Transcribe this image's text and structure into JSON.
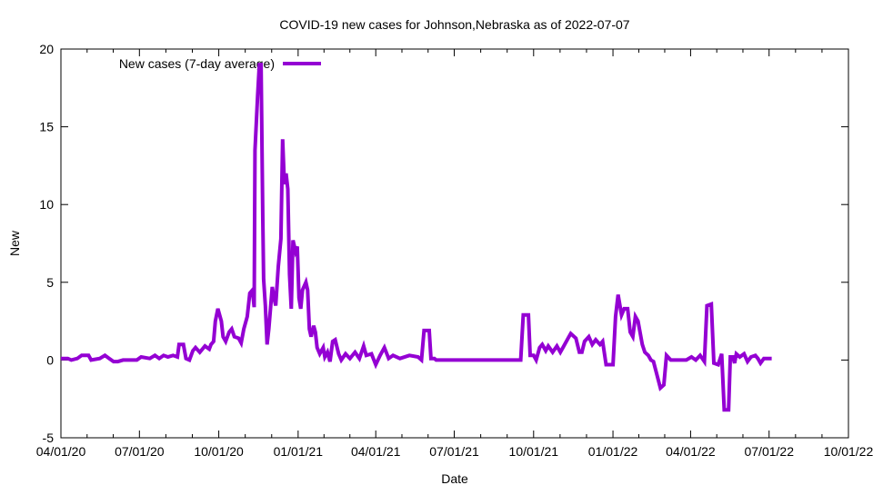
{
  "chart_data": {
    "type": "line",
    "title": "COVID-19 new cases for Johnson,Nebraska as of 2022-07-07",
    "xlabel": "Date",
    "ylabel": "New",
    "x_unit": "days since 04/01/20",
    "xlim": [
      0,
      913
    ],
    "ylim": [
      -5,
      20
    ],
    "y_ticks": [
      -5,
      0,
      5,
      10,
      15,
      20
    ],
    "x_ticks": [
      {
        "day": 0,
        "label": "04/01/20"
      },
      {
        "day": 91,
        "label": "07/01/20"
      },
      {
        "day": 183,
        "label": "10/01/20"
      },
      {
        "day": 275,
        "label": "01/01/21"
      },
      {
        "day": 365,
        "label": "04/01/21"
      },
      {
        "day": 456,
        "label": "07/01/21"
      },
      {
        "day": 548,
        "label": "10/01/21"
      },
      {
        "day": 640,
        "label": "01/01/22"
      },
      {
        "day": 730,
        "label": "04/01/22"
      },
      {
        "day": 821,
        "label": "07/01/22"
      },
      {
        "day": 913,
        "label": "10/01/22"
      }
    ],
    "grid": false,
    "legend_position": "top-left",
    "series": [
      {
        "name": "New cases (7-day average)",
        "color": "#9400d3",
        "points": [
          [
            0,
            0.1
          ],
          [
            8,
            0.1
          ],
          [
            12,
            0
          ],
          [
            19,
            0.1
          ],
          [
            24,
            0.3
          ],
          [
            32,
            0.3
          ],
          [
            35,
            0
          ],
          [
            45,
            0.1
          ],
          [
            51,
            0.3
          ],
          [
            56,
            0.1
          ],
          [
            61,
            -0.1
          ],
          [
            66,
            -0.1
          ],
          [
            72,
            0
          ],
          [
            88,
            0
          ],
          [
            93,
            0.2
          ],
          [
            103,
            0.1
          ],
          [
            109,
            0.3
          ],
          [
            114,
            0.1
          ],
          [
            119,
            0.3
          ],
          [
            124,
            0.2
          ],
          [
            130,
            0.3
          ],
          [
            135,
            0.2
          ],
          [
            137,
            1.0
          ],
          [
            142,
            1.0
          ],
          [
            145,
            0.1
          ],
          [
            149,
            0
          ],
          [
            153,
            0.6
          ],
          [
            156,
            0.8
          ],
          [
            161,
            0.5
          ],
          [
            167,
            0.9
          ],
          [
            172,
            0.7
          ],
          [
            174,
            1.0
          ],
          [
            177,
            1.2
          ],
          [
            179,
            2.5
          ],
          [
            182,
            3.3
          ],
          [
            186,
            2.5
          ],
          [
            188,
            1.5
          ],
          [
            191,
            1.2
          ],
          [
            195,
            1.8
          ],
          [
            198,
            2.0
          ],
          [
            201,
            1.5
          ],
          [
            206,
            1.4
          ],
          [
            209,
            1.1
          ],
          [
            212,
            2.0
          ],
          [
            216,
            2.8
          ],
          [
            219,
            4.3
          ],
          [
            222,
            4.5
          ],
          [
            224,
            3.4
          ],
          [
            225,
            13.5
          ],
          [
            228,
            17
          ],
          [
            230,
            19
          ],
          [
            232,
            19
          ],
          [
            234,
            9
          ],
          [
            235,
            5.2
          ],
          [
            237,
            3.5
          ],
          [
            239,
            1.0
          ],
          [
            241,
            2
          ],
          [
            245,
            4.7
          ],
          [
            247,
            4.0
          ],
          [
            249,
            3.5
          ],
          [
            252,
            6
          ],
          [
            255,
            7.8
          ],
          [
            257,
            14.2
          ],
          [
            259,
            11.3
          ],
          [
            261,
            12
          ],
          [
            263,
            11
          ],
          [
            265,
            5.5
          ],
          [
            267,
            3.3
          ],
          [
            269,
            7.7
          ],
          [
            272,
            7
          ],
          [
            274,
            7.3
          ],
          [
            276,
            4
          ],
          [
            278,
            3.3
          ],
          [
            280,
            4.5
          ],
          [
            284,
            5
          ],
          [
            286,
            4.5
          ],
          [
            288,
            2
          ],
          [
            290,
            1.5
          ],
          [
            293,
            2.2
          ],
          [
            295,
            1.8
          ],
          [
            297,
            0.8
          ],
          [
            300,
            0.4
          ],
          [
            304,
            0.8
          ],
          [
            306,
            0.2
          ],
          [
            309,
            0.5
          ],
          [
            312,
            -0.1
          ],
          [
            315,
            1.2
          ],
          [
            318,
            1.3
          ],
          [
            322,
            0.4
          ],
          [
            325,
            0
          ],
          [
            330,
            0.4
          ],
          [
            335,
            0.1
          ],
          [
            341,
            0.5
          ],
          [
            346,
            0.1
          ],
          [
            351,
            0.9
          ],
          [
            354,
            0.3
          ],
          [
            360,
            0.4
          ],
          [
            365,
            -0.3
          ],
          [
            370,
            0.3
          ],
          [
            375,
            0.8
          ],
          [
            380,
            0.1
          ],
          [
            385,
            0.3
          ],
          [
            393,
            0.1
          ],
          [
            404,
            0.3
          ],
          [
            414,
            0.2
          ],
          [
            418,
            0
          ],
          [
            421,
            1.9
          ],
          [
            427,
            1.9
          ],
          [
            429,
            0.1
          ],
          [
            433,
            0.1
          ],
          [
            435,
            0
          ],
          [
            533,
            0
          ],
          [
            536,
            2.9
          ],
          [
            542,
            2.9
          ],
          [
            544,
            0.3
          ],
          [
            548,
            0.3
          ],
          [
            551,
            0
          ],
          [
            555,
            0.8
          ],
          [
            558,
            1.0
          ],
          [
            562,
            0.6
          ],
          [
            565,
            0.9
          ],
          [
            570,
            0.5
          ],
          [
            575,
            0.9
          ],
          [
            579,
            0.5
          ],
          [
            583,
            0.9
          ],
          [
            588,
            1.4
          ],
          [
            591,
            1.7
          ],
          [
            597,
            1.4
          ],
          [
            601,
            0.5
          ],
          [
            604,
            0.5
          ],
          [
            607,
            1.2
          ],
          [
            612,
            1.5
          ],
          [
            616,
            1.0
          ],
          [
            620,
            1.3
          ],
          [
            625,
            1.0
          ],
          [
            628,
            1.2
          ],
          [
            632,
            -0.3
          ],
          [
            640,
            -0.3
          ],
          [
            643,
            2.8
          ],
          [
            646,
            4.2
          ],
          [
            650,
            2.9
          ],
          [
            653,
            3.3
          ],
          [
            657,
            3.3
          ],
          [
            660,
            1.8
          ],
          [
            663,
            1.5
          ],
          [
            666,
            2.8
          ],
          [
            669,
            2.5
          ],
          [
            674,
            1.0
          ],
          [
            677,
            0.5
          ],
          [
            681,
            0.3
          ],
          [
            684,
            0
          ],
          [
            687,
            -0.1
          ],
          [
            695,
            -1.8
          ],
          [
            699,
            -1.6
          ],
          [
            702,
            0.3
          ],
          [
            707,
            0
          ],
          [
            725,
            0
          ],
          [
            731,
            0.2
          ],
          [
            736,
            0
          ],
          [
            741,
            0.3
          ],
          [
            746,
            -0.1
          ],
          [
            749,
            3.5
          ],
          [
            754,
            3.6
          ],
          [
            757,
            -0.2
          ],
          [
            762,
            -0.3
          ],
          [
            766,
            0.4
          ],
          [
            769,
            -3.2
          ],
          [
            774,
            -3.2
          ],
          [
            776,
            0.2
          ],
          [
            779,
            0.2
          ],
          [
            781,
            -0.2
          ],
          [
            783,
            0.4
          ],
          [
            787,
            0.2
          ],
          [
            792,
            0.4
          ],
          [
            796,
            -0.1
          ],
          [
            800,
            0.2
          ],
          [
            805,
            0.3
          ],
          [
            808,
            0.1
          ],
          [
            811,
            -0.2
          ],
          [
            815,
            0.1
          ],
          [
            819,
            0.1
          ],
          [
            821,
            0.1
          ],
          [
            824,
            0.1
          ]
        ]
      }
    ]
  }
}
